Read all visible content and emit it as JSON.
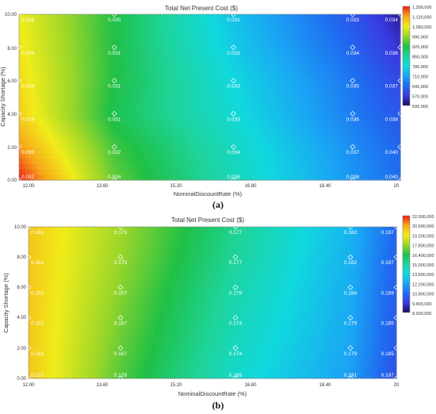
{
  "chart_data": [
    {
      "type": "heatmap",
      "title": "Total Net Present Cost ($)",
      "xlabel": "NominalDiscountRate (%)",
      "ylabel": "Capacity Shortage (%)",
      "xticks": [
        "12.00",
        "13.60",
        "15.20",
        "16.80",
        "18.40",
        "20"
      ],
      "yticks": [
        "0.00",
        "2.00",
        "4.00",
        "6.00",
        "8.00",
        "10.00"
      ],
      "xlim": [
        12,
        20
      ],
      "ylim": [
        0,
        10
      ],
      "marker_x": [
        12,
        14,
        16.5,
        19,
        20
      ],
      "marker_y": [
        0,
        2,
        4,
        6,
        8,
        10
      ],
      "cell_labels": [
        [
          "0.032",
          "0.034",
          "0.036",
          "0.038",
          "0.040"
        ],
        [
          "0.030",
          "0.032",
          "0.034",
          "0.037",
          "0.040"
        ],
        [
          "0.029",
          "0.031",
          "0.033",
          "0.036",
          "0.038"
        ],
        [
          "0.029",
          "0.031",
          "0.033",
          "0.035",
          "0.037"
        ],
        [
          "0.029",
          "0.031",
          "0.033",
          "0.034",
          "0.036"
        ],
        [
          "0.028",
          "0.030",
          "0.031",
          "0.033",
          "0.034"
        ]
      ],
      "cost_grid": [
        [
          1200000,
          960000,
          820000,
          690000,
          640000
        ],
        [
          1140000,
          940000,
          810000,
          680000,
          630000
        ],
        [
          1090000,
          910000,
          790000,
          660000,
          610000
        ],
        [
          1080000,
          920000,
          780000,
          650000,
          590000
        ],
        [
          1070000,
          920000,
          760000,
          630000,
          560000
        ],
        [
          1060000,
          920000,
          750000,
          610000,
          530000
        ]
      ],
      "legend_ticks": [
        "1,200,000",
        "1,130,000",
        "1,060,000",
        "990,000",
        "920,000",
        "850,000",
        "780,000",
        "710,000",
        "640,000",
        "570,000",
        "500,000"
      ],
      "caption": "(a)"
    },
    {
      "type": "heatmap",
      "title": "Total Net Present Cost ($)",
      "xlabel": "NominalDiscountRate (%)",
      "ylabel": "Capacity Shortage (%)",
      "xticks": [
        "12.00",
        "13.60",
        "15.20",
        "16.80",
        "18.40",
        "20"
      ],
      "yticks": [
        "0.00",
        "2.00",
        "4.00",
        "6.00",
        "8.00",
        "10.00"
      ],
      "xlim": [
        12,
        20
      ],
      "ylim": [
        0,
        10
      ],
      "marker_x": [
        12,
        14,
        16.5,
        19,
        20
      ],
      "marker_y": [
        0,
        2,
        4,
        6,
        8,
        10
      ],
      "cell_labels": [
        [
          "0.172",
          "0.178",
          "0.185",
          "0.191",
          "0.197"
        ],
        [
          "0.161",
          "0.167",
          "0.174",
          "0.179",
          "0.185"
        ],
        [
          "0.161",
          "0.167",
          "0.174",
          "0.179",
          "0.185"
        ],
        [
          "0.161",
          "0.167",
          "0.179",
          "0.184",
          "0.189"
        ],
        [
          "0.161",
          "0.173",
          "0.177",
          "0.182",
          "0.187"
        ],
        [
          "0.161",
          "0.173",
          "0.177",
          "0.182",
          "0.187"
        ]
      ],
      "cost_grid": [
        [
          20000000,
          17000000,
          14000000,
          12000000,
          10000000
        ],
        [
          20000000,
          17200000,
          14300000,
          12200000,
          10200000
        ],
        [
          20000000,
          17400000,
          14500000,
          12300000,
          10300000
        ],
        [
          20000000,
          17600000,
          14700000,
          12400000,
          10400000
        ],
        [
          20000000,
          17800000,
          15000000,
          12500000,
          10500000
        ],
        [
          20000000,
          17900000,
          15200000,
          12600000,
          10600000
        ]
      ],
      "legend_ticks": [
        "22,000,000",
        "20,600,000",
        "19,200,000",
        "17,800,000",
        "16,400,000",
        "15,000,000",
        "13,600,000",
        "12,200,000",
        "10,800,000",
        "9,400,000",
        "8,000,000"
      ],
      "caption": "(b)"
    }
  ]
}
